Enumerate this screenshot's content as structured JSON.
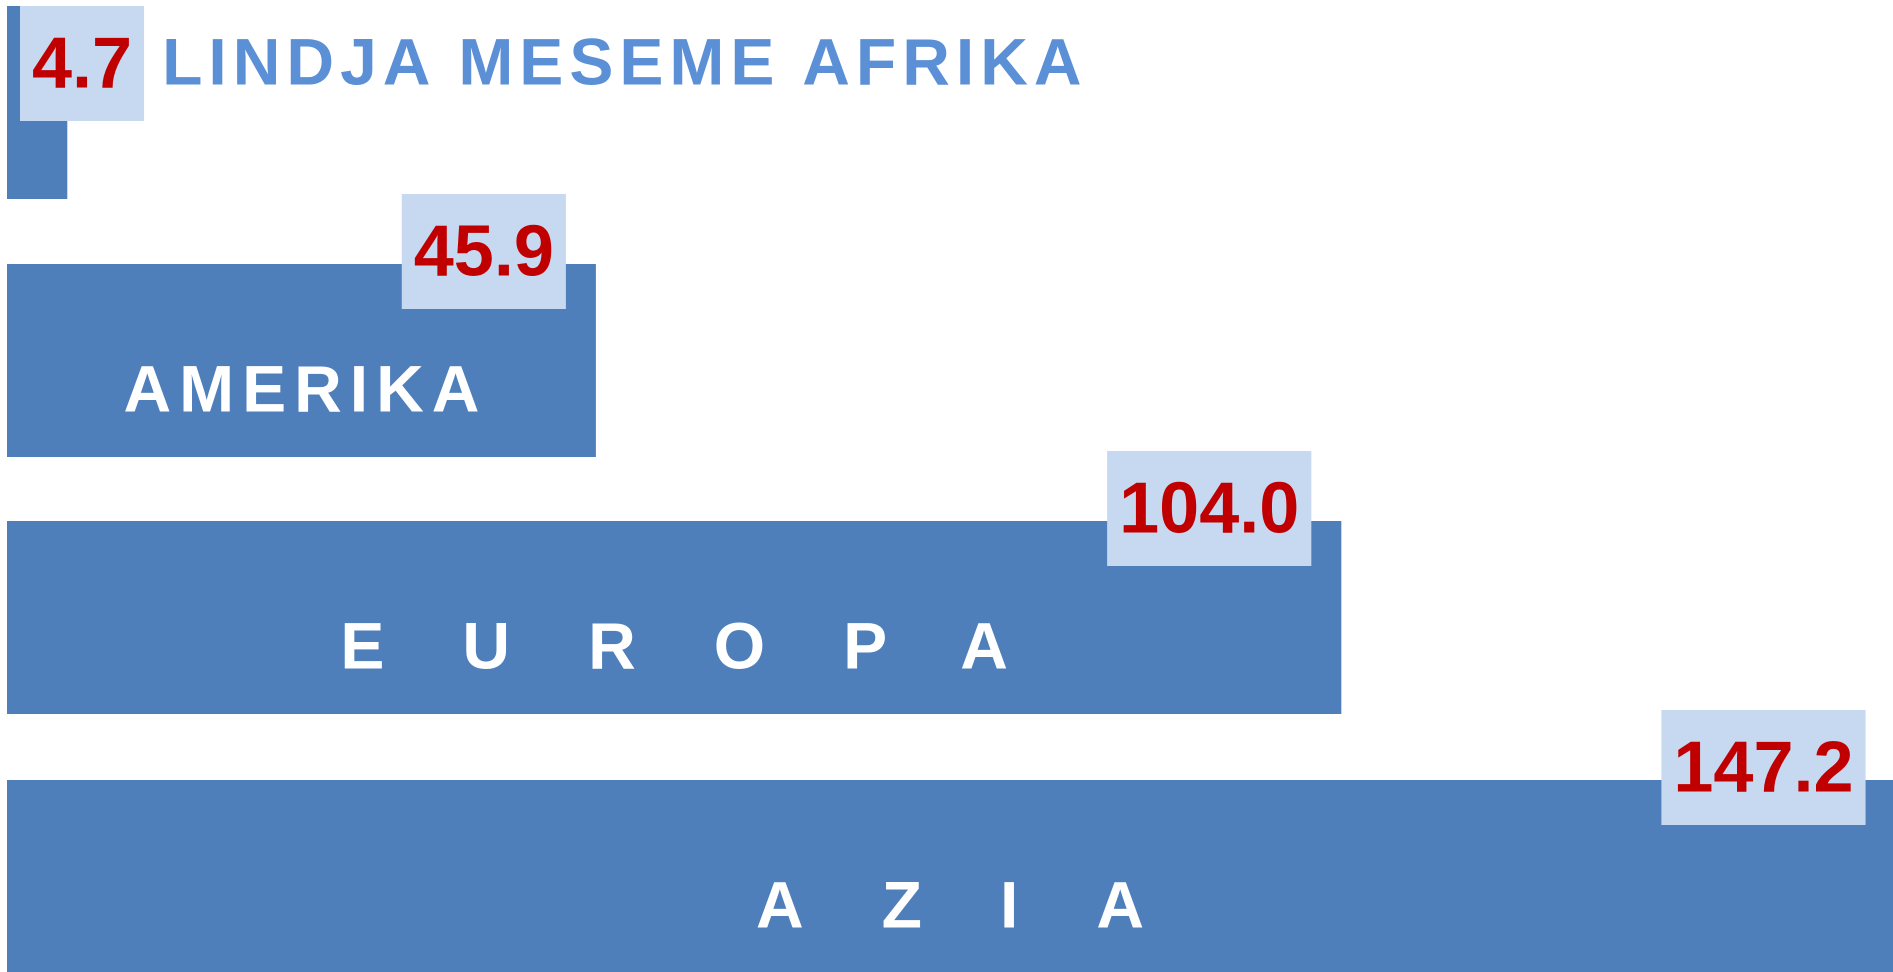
{
  "chart_data": {
    "type": "bar",
    "orientation": "horizontal",
    "categories": [
      "LINDJA MESEME AFRIKA",
      "AMERIKA",
      "EUROPA",
      "AZIA"
    ],
    "values": [
      4.7,
      45.9,
      104.0,
      147.2
    ],
    "value_labels": [
      "4.7",
      "45.9",
      "104.0",
      "147.2"
    ],
    "color": "#4f7fbb",
    "label_box_color": "#c6d9f0",
    "label_color": "#c00000"
  }
}
